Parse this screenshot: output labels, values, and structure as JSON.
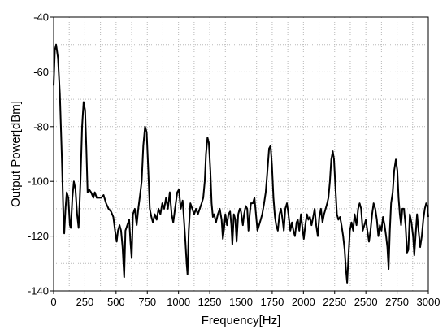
{
  "chart_data": {
    "type": "line",
    "title": "",
    "xlabel": "Frequency[Hz]",
    "ylabel": "Output Power[dBm]",
    "xlim": [
      0,
      3000
    ],
    "ylim": [
      -140,
      -40
    ],
    "xticks": [
      0,
      250,
      500,
      750,
      1000,
      1250,
      1500,
      1750,
      2000,
      2250,
      2500,
      2750,
      3000
    ],
    "yticks": [
      -40,
      -60,
      -80,
      -100,
      -120,
      -140
    ],
    "x_minor_step": 125,
    "y_minor_step": 10,
    "grid": "dotted",
    "colors": {
      "line": "#000000",
      "grid": "#b8b8b8",
      "axis": "#000000"
    },
    "series": [
      {
        "values": [
          [
            0,
            -65
          ],
          [
            10,
            -52
          ],
          [
            20,
            -50
          ],
          [
            35,
            -55
          ],
          [
            50,
            -68
          ],
          [
            65,
            -90
          ],
          [
            78,
            -112
          ],
          [
            85,
            -119
          ],
          [
            95,
            -110
          ],
          [
            105,
            -104
          ],
          [
            118,
            -106
          ],
          [
            130,
            -116
          ],
          [
            138,
            -117
          ],
          [
            150,
            -106
          ],
          [
            162,
            -100
          ],
          [
            175,
            -103
          ],
          [
            188,
            -112
          ],
          [
            200,
            -117
          ],
          [
            215,
            -100
          ],
          [
            228,
            -80
          ],
          [
            240,
            -71
          ],
          [
            252,
            -74
          ],
          [
            262,
            -88
          ],
          [
            272,
            -104
          ],
          [
            285,
            -103
          ],
          [
            300,
            -104
          ],
          [
            318,
            -106
          ],
          [
            330,
            -104
          ],
          [
            345,
            -106
          ],
          [
            360,
            -106
          ],
          [
            380,
            -106
          ],
          [
            400,
            -105
          ],
          [
            420,
            -108
          ],
          [
            440,
            -110
          ],
          [
            460,
            -111
          ],
          [
            478,
            -113
          ],
          [
            492,
            -118
          ],
          [
            505,
            -122
          ],
          [
            515,
            -118
          ],
          [
            528,
            -116
          ],
          [
            540,
            -118
          ],
          [
            552,
            -124
          ],
          [
            565,
            -135
          ],
          [
            575,
            -118
          ],
          [
            590,
            -116
          ],
          [
            605,
            -114
          ],
          [
            615,
            -122
          ],
          [
            625,
            -128
          ],
          [
            635,
            -112
          ],
          [
            650,
            -110
          ],
          [
            665,
            -116
          ],
          [
            678,
            -110
          ],
          [
            692,
            -105
          ],
          [
            705,
            -100
          ],
          [
            718,
            -87
          ],
          [
            732,
            -80
          ],
          [
            745,
            -82
          ],
          [
            758,
            -96
          ],
          [
            770,
            -110
          ],
          [
            783,
            -113
          ],
          [
            795,
            -115
          ],
          [
            810,
            -112
          ],
          [
            825,
            -114
          ],
          [
            840,
            -110
          ],
          [
            855,
            -112
          ],
          [
            870,
            -108
          ],
          [
            885,
            -110
          ],
          [
            900,
            -106
          ],
          [
            915,
            -110
          ],
          [
            930,
            -104
          ],
          [
            945,
            -112
          ],
          [
            958,
            -115
          ],
          [
            972,
            -110
          ],
          [
            990,
            -104
          ],
          [
            1003,
            -103
          ],
          [
            1018,
            -110
          ],
          [
            1033,
            -107
          ],
          [
            1045,
            -115
          ],
          [
            1055,
            -122
          ],
          [
            1065,
            -130
          ],
          [
            1072,
            -134
          ],
          [
            1082,
            -118
          ],
          [
            1095,
            -108
          ],
          [
            1110,
            -110
          ],
          [
            1125,
            -112
          ],
          [
            1140,
            -110
          ],
          [
            1155,
            -112
          ],
          [
            1170,
            -110
          ],
          [
            1185,
            -108
          ],
          [
            1198,
            -106
          ],
          [
            1210,
            -100
          ],
          [
            1220,
            -90
          ],
          [
            1232,
            -84
          ],
          [
            1243,
            -86
          ],
          [
            1255,
            -96
          ],
          [
            1265,
            -108
          ],
          [
            1275,
            -113
          ],
          [
            1285,
            -112
          ],
          [
            1300,
            -115
          ],
          [
            1315,
            -112
          ],
          [
            1330,
            -110
          ],
          [
            1345,
            -114
          ],
          [
            1355,
            -121
          ],
          [
            1363,
            -118
          ],
          [
            1375,
            -112
          ],
          [
            1388,
            -116
          ],
          [
            1400,
            -112
          ],
          [
            1413,
            -111
          ],
          [
            1423,
            -116
          ],
          [
            1431,
            -123
          ],
          [
            1443,
            -112
          ],
          [
            1455,
            -114
          ],
          [
            1465,
            -122
          ],
          [
            1478,
            -112
          ],
          [
            1490,
            -110
          ],
          [
            1500,
            -111
          ],
          [
            1515,
            -116
          ],
          [
            1525,
            -112
          ],
          [
            1538,
            -109
          ],
          [
            1550,
            -110
          ],
          [
            1560,
            -118
          ],
          [
            1570,
            -112
          ],
          [
            1580,
            -108
          ],
          [
            1595,
            -108
          ],
          [
            1608,
            -106
          ],
          [
            1620,
            -112
          ],
          [
            1632,
            -118
          ],
          [
            1645,
            -116
          ],
          [
            1658,
            -114
          ],
          [
            1670,
            -112
          ],
          [
            1685,
            -108
          ],
          [
            1698,
            -104
          ],
          [
            1712,
            -96
          ],
          [
            1725,
            -88
          ],
          [
            1737,
            -87
          ],
          [
            1748,
            -94
          ],
          [
            1760,
            -106
          ],
          [
            1772,
            -113
          ],
          [
            1782,
            -116
          ],
          [
            1795,
            -118
          ],
          [
            1808,
            -112
          ],
          [
            1820,
            -110
          ],
          [
            1833,
            -114
          ],
          [
            1843,
            -118
          ],
          [
            1855,
            -110
          ],
          [
            1868,
            -108
          ],
          [
            1880,
            -112
          ],
          [
            1895,
            -118
          ],
          [
            1908,
            -115
          ],
          [
            1920,
            -118
          ],
          [
            1932,
            -120
          ],
          [
            1945,
            -115
          ],
          [
            1955,
            -114
          ],
          [
            1967,
            -118
          ],
          [
            1980,
            -112
          ],
          [
            1992,
            -117
          ],
          [
            2003,
            -121
          ],
          [
            2015,
            -116
          ],
          [
            2028,
            -112
          ],
          [
            2040,
            -114
          ],
          [
            2052,
            -113
          ],
          [
            2065,
            -116
          ],
          [
            2078,
            -113
          ],
          [
            2090,
            -110
          ],
          [
            2102,
            -116
          ],
          [
            2115,
            -120
          ],
          [
            2127,
            -113
          ],
          [
            2140,
            -110
          ],
          [
            2153,
            -115
          ],
          [
            2165,
            -112
          ],
          [
            2178,
            -110
          ],
          [
            2190,
            -108
          ],
          [
            2200,
            -106
          ],
          [
            2212,
            -100
          ],
          [
            2223,
            -92
          ],
          [
            2235,
            -89
          ],
          [
            2245,
            -92
          ],
          [
            2256,
            -102
          ],
          [
            2268,
            -112
          ],
          [
            2280,
            -114
          ],
          [
            2293,
            -113
          ],
          [
            2305,
            -116
          ],
          [
            2318,
            -120
          ],
          [
            2330,
            -125
          ],
          [
            2340,
            -132
          ],
          [
            2350,
            -137
          ],
          [
            2360,
            -128
          ],
          [
            2372,
            -118
          ],
          [
            2385,
            -115
          ],
          [
            2398,
            -118
          ],
          [
            2410,
            -112
          ],
          [
            2425,
            -116
          ],
          [
            2438,
            -110
          ],
          [
            2450,
            -108
          ],
          [
            2462,
            -110
          ],
          [
            2475,
            -118
          ],
          [
            2488,
            -116
          ],
          [
            2500,
            -114
          ],
          [
            2512,
            -118
          ],
          [
            2525,
            -122
          ],
          [
            2537,
            -118
          ],
          [
            2550,
            -112
          ],
          [
            2562,
            -108
          ],
          [
            2575,
            -110
          ],
          [
            2588,
            -114
          ],
          [
            2600,
            -120
          ],
          [
            2612,
            -116
          ],
          [
            2625,
            -118
          ],
          [
            2637,
            -113
          ],
          [
            2650,
            -116
          ],
          [
            2662,
            -120
          ],
          [
            2672,
            -124
          ],
          [
            2682,
            -132
          ],
          [
            2692,
            -118
          ],
          [
            2702,
            -108
          ],
          [
            2715,
            -104
          ],
          [
            2727,
            -96
          ],
          [
            2740,
            -92
          ],
          [
            2752,
            -96
          ],
          [
            2762,
            -106
          ],
          [
            2772,
            -112
          ],
          [
            2782,
            -116
          ],
          [
            2792,
            -110
          ],
          [
            2805,
            -110
          ],
          [
            2818,
            -116
          ],
          [
            2830,
            -126
          ],
          [
            2840,
            -125
          ],
          [
            2852,
            -112
          ],
          [
            2865,
            -115
          ],
          [
            2878,
            -120
          ],
          [
            2888,
            -127
          ],
          [
            2898,
            -120
          ],
          [
            2910,
            -112
          ],
          [
            2922,
            -118
          ],
          [
            2935,
            -124
          ],
          [
            2948,
            -120
          ],
          [
            2960,
            -114
          ],
          [
            2972,
            -110
          ],
          [
            2983,
            -108
          ],
          [
            2992,
            -109
          ],
          [
            3000,
            -113
          ]
        ]
      }
    ]
  }
}
